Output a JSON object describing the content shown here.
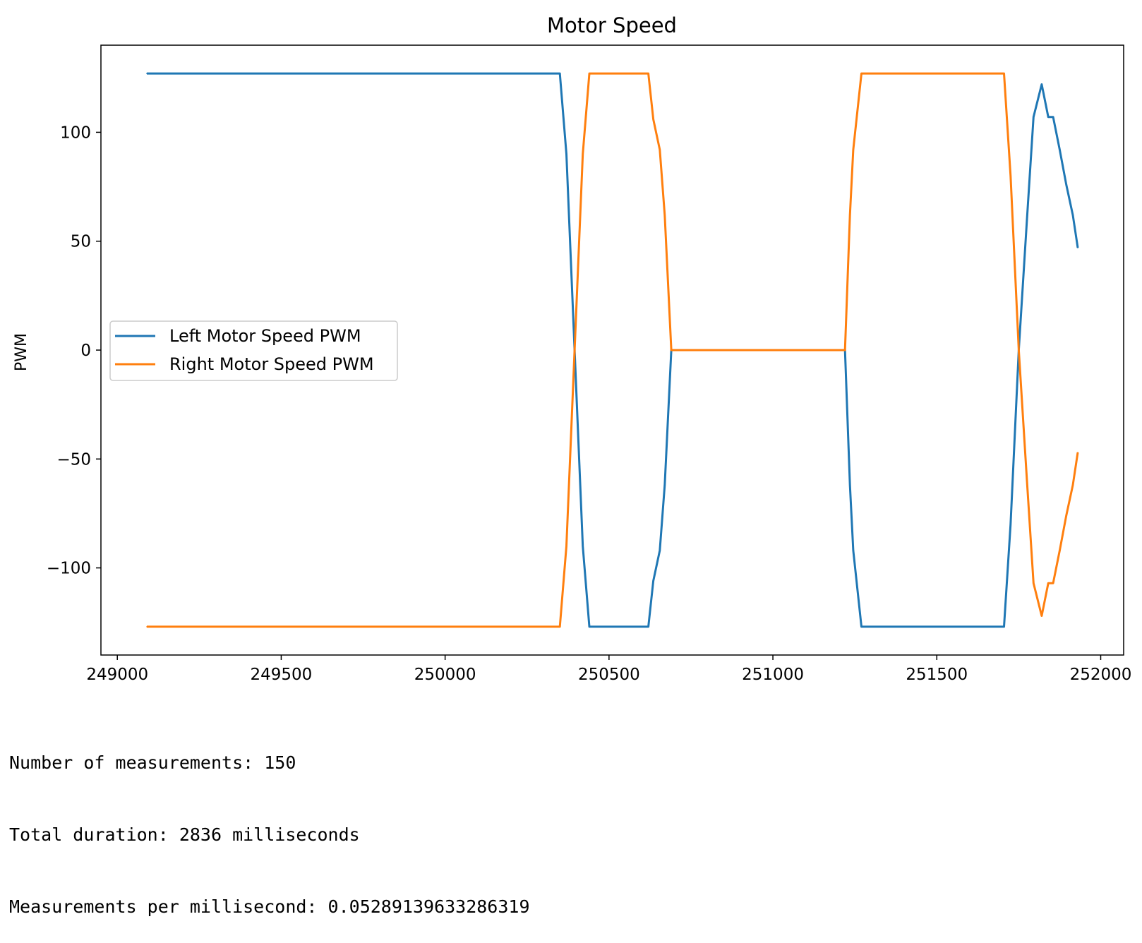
{
  "chart_data": {
    "type": "line",
    "title": "Motor Speed",
    "xlabel": "",
    "ylabel": "PWM",
    "xlim": [
      248950,
      252070
    ],
    "ylim": [
      -140,
      140
    ],
    "xticks": [
      249000,
      249500,
      250000,
      250500,
      251000,
      251500,
      252000
    ],
    "yticks": [
      -100,
      -50,
      0,
      50,
      100
    ],
    "grid": false,
    "legend_position": "center-left",
    "series": [
      {
        "name": "Left Motor Speed PWM",
        "color": "#1f77b4",
        "points": [
          [
            249090,
            127
          ],
          [
            250350,
            127
          ],
          [
            250370,
            90
          ],
          [
            250395,
            0
          ],
          [
            250420,
            -90
          ],
          [
            250440,
            -127
          ],
          [
            250620,
            -127
          ],
          [
            250635,
            -106
          ],
          [
            250655,
            -92
          ],
          [
            250670,
            -62
          ],
          [
            250690,
            0
          ],
          [
            251220,
            0
          ],
          [
            251235,
            -62
          ],
          [
            251245,
            -92
          ],
          [
            251270,
            -127
          ],
          [
            251705,
            -127
          ],
          [
            251725,
            -80
          ],
          [
            251750,
            0
          ],
          [
            251775,
            60
          ],
          [
            251795,
            107
          ],
          [
            251820,
            122
          ],
          [
            251840,
            107
          ],
          [
            251855,
            107
          ],
          [
            251875,
            92
          ],
          [
            251895,
            76
          ],
          [
            251915,
            62
          ],
          [
            251930,
            47
          ]
        ]
      },
      {
        "name": "Right Motor Speed PWM",
        "color": "#ff7f0e",
        "points": [
          [
            249090,
            -127
          ],
          [
            250350,
            -127
          ],
          [
            250370,
            -90
          ],
          [
            250395,
            0
          ],
          [
            250420,
            90
          ],
          [
            250440,
            127
          ],
          [
            250620,
            127
          ],
          [
            250635,
            106
          ],
          [
            250655,
            92
          ],
          [
            250670,
            62
          ],
          [
            250690,
            0
          ],
          [
            251220,
            0
          ],
          [
            251235,
            62
          ],
          [
            251245,
            92
          ],
          [
            251270,
            127
          ],
          [
            251705,
            127
          ],
          [
            251725,
            80
          ],
          [
            251750,
            0
          ],
          [
            251775,
            -60
          ],
          [
            251795,
            -107
          ],
          [
            251820,
            -122
          ],
          [
            251840,
            -107
          ],
          [
            251855,
            -107
          ],
          [
            251875,
            -92
          ],
          [
            251895,
            -76
          ],
          [
            251915,
            -62
          ],
          [
            251930,
            -47
          ]
        ]
      }
    ]
  },
  "output": {
    "lines": [
      "Number of measurements: 150",
      "Total duration: 2836 milliseconds",
      "Measurements per millisecond: 0.05289139633286319"
    ]
  }
}
